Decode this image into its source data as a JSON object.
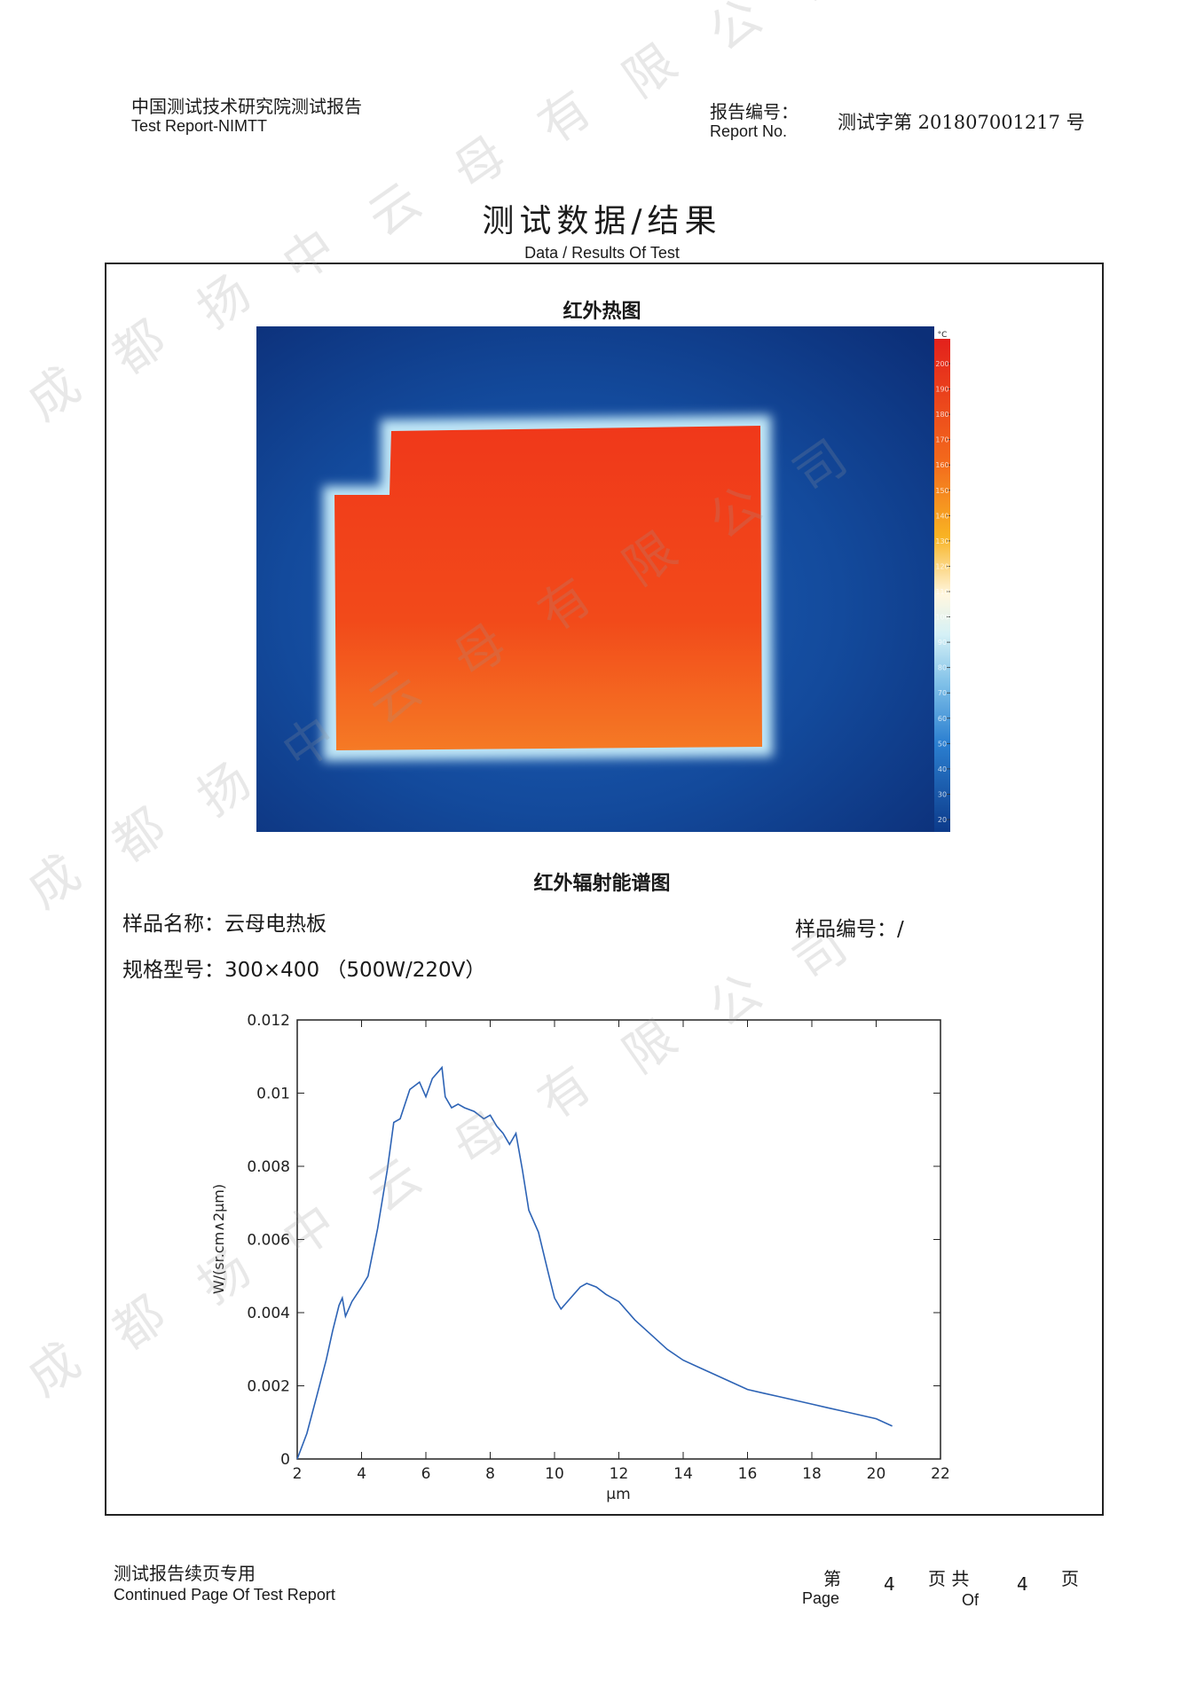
{
  "header": {
    "org_cn": "中国测试技术研究院测试报告",
    "org_en": "Test Report-NIMTT",
    "report_no_label_cn": "报告编号：",
    "report_no_label_en": "Report No.",
    "report_no_value": "测试字第 201807001217 号"
  },
  "title": {
    "cn": "测试数据/结果",
    "en": "Data / Results Of Test"
  },
  "thermal": {
    "title": "红外热图",
    "unit": "°C",
    "scale_ticks": [
      "200",
      "190",
      "180",
      "170",
      "160",
      "150",
      "140",
      "130",
      "120",
      "110",
      "100",
      "90",
      "80",
      "70",
      "60",
      "50",
      "40",
      "30",
      "20"
    ]
  },
  "spectrum_title": "红外辐射能谱图",
  "sample": {
    "name_label": "样品名称：",
    "name_value": "云母电热板",
    "id_label": "样品编号：",
    "id_value": "/",
    "model_label": "规格型号：",
    "model_value": "300×400 （500W/220V）"
  },
  "chart_data": {
    "type": "line",
    "xlabel": "μm",
    "ylabel": "W/(sr.cm∧2μm)",
    "xlim": [
      2,
      22
    ],
    "ylim": [
      0,
      0.012
    ],
    "xticks": [
      "2",
      "4",
      "6",
      "8",
      "10",
      "12",
      "14",
      "16",
      "18",
      "20",
      "22"
    ],
    "yticks": [
      "0",
      "0.002",
      "0.004",
      "0.006",
      "0.008",
      "0.01",
      "0.012"
    ],
    "series": [
      {
        "x": [
          2.0,
          2.3,
          2.6,
          2.9,
          3.1,
          3.3,
          3.4,
          3.5,
          3.7,
          4.0,
          4.2,
          4.5,
          4.8,
          5.0,
          5.2,
          5.5,
          5.8,
          6.0,
          6.2,
          6.4,
          6.5,
          6.6,
          6.8,
          7.0,
          7.2,
          7.5,
          7.8,
          8.0,
          8.2,
          8.4,
          8.6,
          8.8,
          9.0,
          9.2,
          9.5,
          9.8,
          10.0,
          10.2,
          10.5,
          10.8,
          11.0,
          11.3,
          11.6,
          12.0,
          12.5,
          13.0,
          13.5,
          14.0,
          14.5,
          15.0,
          15.5,
          16.0,
          16.5,
          17.0,
          17.5,
          18.0,
          18.5,
          19.0,
          19.5,
          20.0,
          20.5
        ],
        "y": [
          0.0,
          0.0007,
          0.0017,
          0.0027,
          0.0035,
          0.0042,
          0.0044,
          0.0039,
          0.0043,
          0.0047,
          0.005,
          0.0063,
          0.0079,
          0.0092,
          0.0093,
          0.0101,
          0.0103,
          0.0099,
          0.0104,
          0.0106,
          0.0107,
          0.0099,
          0.0096,
          0.0097,
          0.0096,
          0.0095,
          0.0093,
          0.0094,
          0.0091,
          0.0089,
          0.0086,
          0.0089,
          0.0079,
          0.0068,
          0.0062,
          0.0051,
          0.0044,
          0.0041,
          0.0044,
          0.0047,
          0.0048,
          0.0047,
          0.0045,
          0.0043,
          0.0038,
          0.0034,
          0.003,
          0.0027,
          0.0025,
          0.0023,
          0.0021,
          0.0019,
          0.0018,
          0.0017,
          0.0016,
          0.0015,
          0.0014,
          0.0013,
          0.0012,
          0.0011,
          0.0009
        ]
      }
    ]
  },
  "footer": {
    "cn": "测试报告续页专用",
    "en": "Continued Page Of Test Report",
    "page_label_cn": "第",
    "page_label_en": "Page",
    "page_num": "4",
    "of_label_cn": "页 共",
    "of_label_en": "Of",
    "total": "4",
    "end_label": "页"
  },
  "watermark": {
    "chars": [
      "成",
      "都",
      "扬",
      "中",
      "云",
      "母",
      "有",
      "限",
      "公",
      "司"
    ]
  }
}
